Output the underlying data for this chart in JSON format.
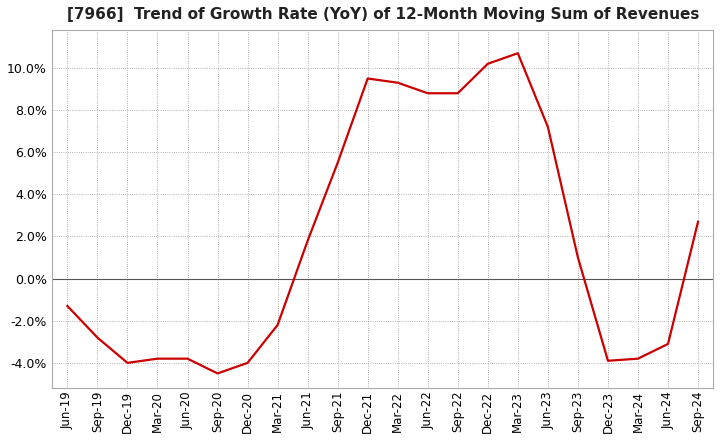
{
  "title": "[7966]  Trend of Growth Rate (YoY) of 12-Month Moving Sum of Revenues",
  "line_color": "#cc0000",
  "background_color": "#ffffff",
  "plot_bg_color": "#ffffff",
  "grid_color": "#999999",
  "ylim": [
    -0.052,
    0.118
  ],
  "yticks": [
    -0.04,
    -0.02,
    0.0,
    0.02,
    0.04,
    0.06,
    0.08,
    0.1
  ],
  "x_labels": [
    "Jun-19",
    "Sep-19",
    "Dec-19",
    "Mar-20",
    "Jun-20",
    "Sep-20",
    "Dec-20",
    "Mar-21",
    "Jun-21",
    "Sep-21",
    "Dec-21",
    "Mar-22",
    "Jun-22",
    "Sep-22",
    "Dec-22",
    "Mar-23",
    "Jun-23",
    "Sep-23",
    "Dec-23",
    "Mar-24",
    "Jun-24",
    "Sep-24"
  ],
  "y_values": [
    -0.013,
    -0.028,
    -0.04,
    -0.038,
    -0.038,
    -0.045,
    -0.04,
    -0.022,
    0.018,
    0.055,
    0.095,
    0.093,
    0.088,
    0.088,
    0.102,
    0.107,
    0.072,
    0.01,
    -0.039,
    -0.038,
    -0.031,
    0.027
  ],
  "title_fontsize": 11,
  "tick_fontsize": 8.5,
  "ytick_fontsize": 9,
  "line_width": 1.6
}
